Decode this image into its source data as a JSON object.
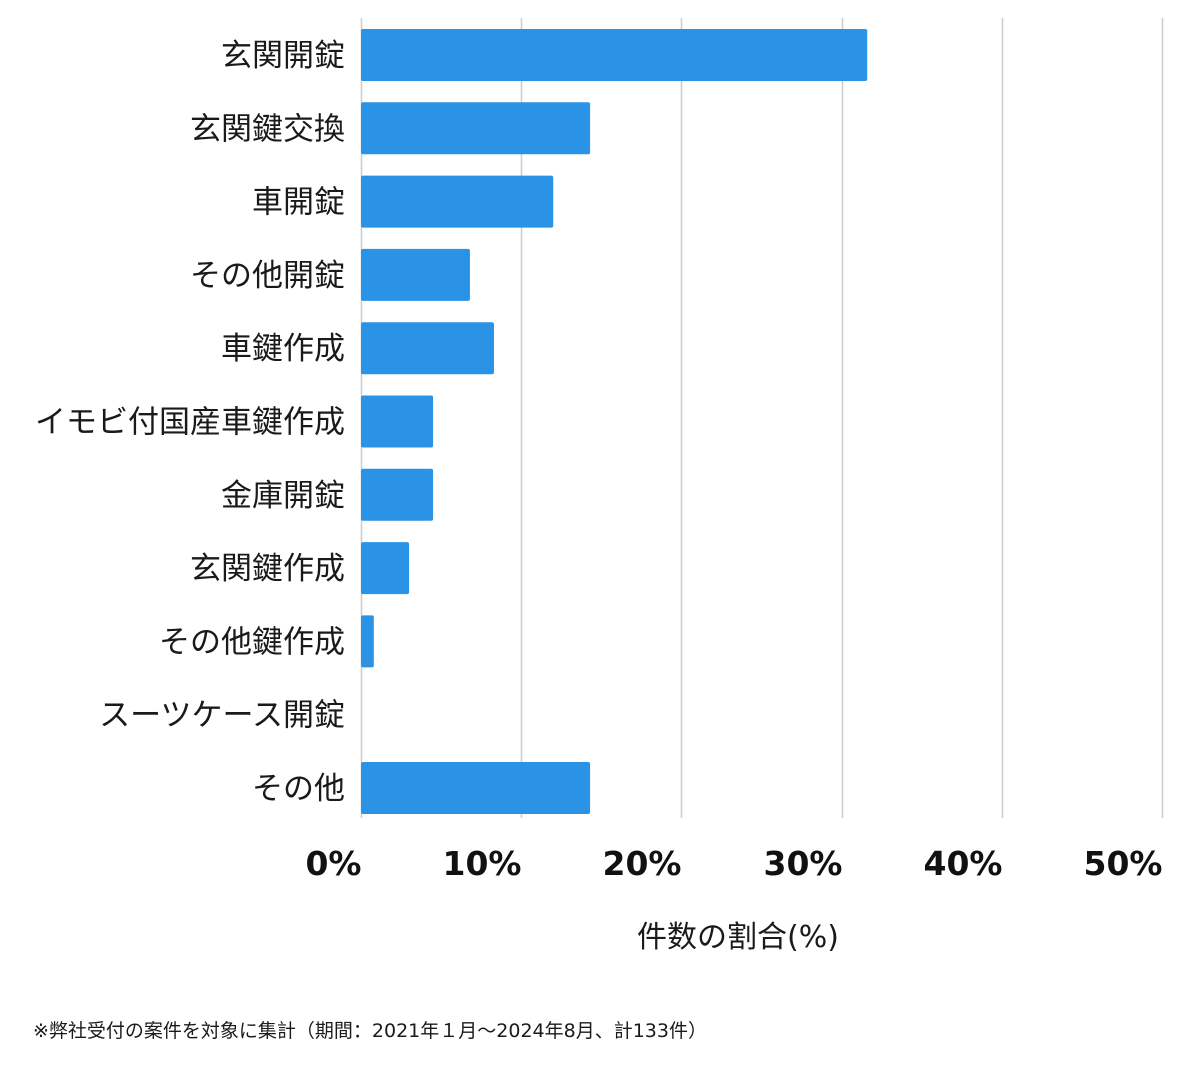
{
  "chart_data": {
    "type": "bar",
    "orientation": "horizontal",
    "categories": [
      "玄関開錠",
      "玄関鍵交換",
      "車開錠",
      "その他開錠",
      "車鍵作成",
      "イモビ付国産車鍵作成",
      "金庫開錠",
      "玄関鍵作成",
      "その他鍵作成",
      "スーツケース開錠",
      "その他"
    ],
    "values": [
      31.6,
      14.3,
      12.0,
      6.8,
      8.3,
      4.5,
      4.5,
      3.0,
      0.8,
      0.0,
      14.3
    ],
    "xlim": [
      0,
      50
    ],
    "xticks": [
      0,
      10,
      20,
      30,
      40,
      50
    ],
    "xtick_labels": [
      "0%",
      "10%",
      "20%",
      "30%",
      "40%",
      "50%"
    ],
    "xlabel": "件数の割合(%)",
    "ylabel": "",
    "grid": true,
    "bar_color": "#2a93e6",
    "grid_color": "#cccccc"
  },
  "footnote": "※弊社受付の案件を対象に集計（期間：2021年１月〜2024年8月、計133件）"
}
